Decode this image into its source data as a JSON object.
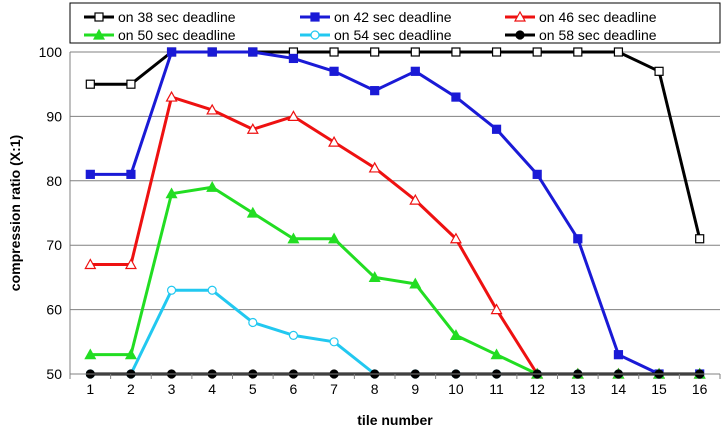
{
  "chart_data": {
    "type": "line",
    "title": "",
    "xlabel": "tile number",
    "ylabel": "compression ratio (X:1)",
    "x": [
      1,
      2,
      3,
      4,
      5,
      6,
      7,
      8,
      9,
      10,
      11,
      12,
      13,
      14,
      15,
      16
    ],
    "ylim": [
      50,
      100
    ],
    "yticks": [
      50,
      60,
      70,
      80,
      90,
      100
    ],
    "grid": "horizontal",
    "legend_position": "top",
    "series": [
      {
        "name": "on 38 sec deadline",
        "color": "#000000",
        "marker": "square-open",
        "values": [
          95,
          95,
          100,
          100,
          100,
          100,
          100,
          100,
          100,
          100,
          100,
          100,
          100,
          100,
          97,
          71
        ]
      },
      {
        "name": "on 42 sec deadline",
        "color": "#1a1ad6",
        "marker": "square-filled",
        "values": [
          81,
          81,
          100,
          100,
          100,
          99,
          97,
          94,
          97,
          93,
          88,
          81,
          71,
          53,
          50,
          50
        ]
      },
      {
        "name": "on 46 sec deadline",
        "color": "#ee1111",
        "marker": "triangle-open",
        "values": [
          67,
          67,
          93,
          91,
          88,
          90,
          86,
          82,
          77,
          71,
          60,
          50,
          50,
          50,
          50,
          50
        ]
      },
      {
        "name": "on 50 sec deadline",
        "color": "#22dd22",
        "marker": "triangle-filled",
        "values": [
          53,
          53,
          78,
          79,
          75,
          71,
          71,
          65,
          64,
          56,
          53,
          50,
          50,
          50,
          50,
          50
        ]
      },
      {
        "name": "on 54 sec deadline",
        "color": "#22c8f0",
        "marker": "circle-open",
        "values": [
          50,
          50,
          63,
          63,
          58,
          56,
          55,
          50,
          50,
          50,
          50,
          50,
          50,
          50,
          50,
          50
        ]
      },
      {
        "name": "on 58 sec deadline",
        "color": "#000000",
        "marker": "circle-filled",
        "values": [
          50,
          50,
          50,
          50,
          50,
          50,
          50,
          50,
          50,
          50,
          50,
          50,
          50,
          50,
          50,
          50
        ]
      }
    ]
  }
}
